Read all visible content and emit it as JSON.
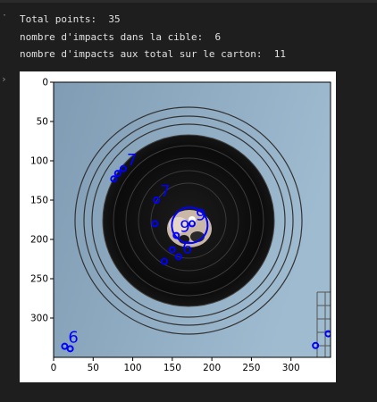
{
  "output": {
    "line1": "Total points:  35",
    "line2": "nombre d'impacts dans la cible:  6",
    "line3": "nombre d'impacts aux total sur le carton:  11"
  },
  "chart_data": {
    "type": "image",
    "xlim": [
      0,
      350
    ],
    "ylim": [
      350,
      0
    ],
    "xticks": [
      "0",
      "50",
      "100",
      "150",
      "200",
      "250",
      "300"
    ],
    "yticks": [
      "0",
      "50",
      "100",
      "150",
      "200",
      "250",
      "300"
    ],
    "points": [
      {
        "x": 88,
        "y": 110,
        "label": "7"
      },
      {
        "x": 81,
        "y": 116,
        "label": ""
      },
      {
        "x": 76,
        "y": 123,
        "label": ""
      },
      {
        "x": 130,
        "y": 150,
        "label": "7"
      },
      {
        "x": 128,
        "y": 180,
        "label": ""
      },
      {
        "x": 155,
        "y": 195,
        "label": "9"
      },
      {
        "x": 175,
        "y": 180,
        "label": "9"
      },
      {
        "x": 150,
        "y": 213,
        "label": ""
      },
      {
        "x": 158,
        "y": 222,
        "label": "6"
      },
      {
        "x": 140,
        "y": 228,
        "label": ""
      },
      {
        "x": 14,
        "y": 336,
        "label": "6"
      },
      {
        "x": 21,
        "y": 339,
        "label": ""
      },
      {
        "x": 331,
        "y": 335,
        "label": ""
      },
      {
        "x": 347,
        "y": 320,
        "label": ""
      }
    ],
    "marker_color": "#0000ff"
  }
}
